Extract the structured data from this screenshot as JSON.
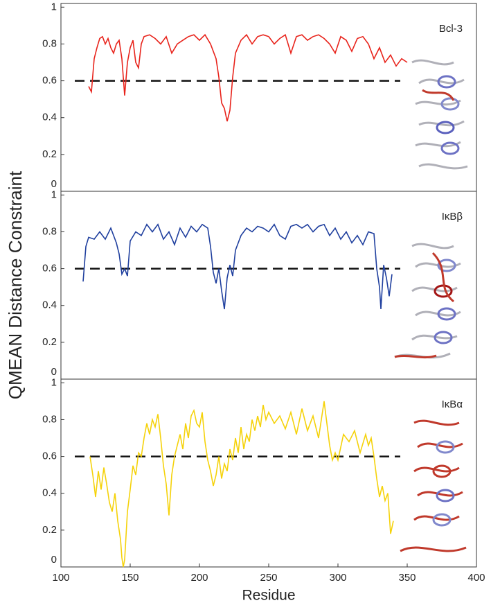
{
  "chart_data": [
    {
      "type": "line",
      "xlim": [
        100,
        400
      ],
      "ylim": [
        0,
        1.02
      ],
      "yticks": [
        0,
        0.2,
        0.4,
        0.6,
        0.8,
        1
      ],
      "threshold": 0.6,
      "series": [
        {
          "name": "Bcl-3",
          "color": "#e8231b",
          "x": [
            120,
            122,
            124,
            126,
            128,
            130,
            132,
            134,
            136,
            138,
            140,
            142,
            144,
            146,
            148,
            150,
            152,
            154,
            156,
            158,
            160,
            164,
            168,
            172,
            176,
            180,
            184,
            188,
            192,
            196,
            200,
            204,
            208,
            212,
            214,
            216,
            218,
            220,
            222,
            224,
            226,
            230,
            234,
            238,
            242,
            246,
            250,
            254,
            258,
            262,
            266,
            270,
            274,
            278,
            282,
            286,
            290,
            294,
            298,
            302,
            306,
            310,
            314,
            318,
            322,
            326,
            330,
            334,
            338,
            342,
            346,
            350
          ],
          "values": [
            0.57,
            0.54,
            0.72,
            0.78,
            0.83,
            0.84,
            0.8,
            0.83,
            0.78,
            0.75,
            0.8,
            0.82,
            0.72,
            0.52,
            0.7,
            0.78,
            0.82,
            0.7,
            0.67,
            0.8,
            0.84,
            0.85,
            0.83,
            0.8,
            0.84,
            0.75,
            0.8,
            0.82,
            0.84,
            0.85,
            0.82,
            0.85,
            0.8,
            0.72,
            0.62,
            0.48,
            0.45,
            0.38,
            0.44,
            0.62,
            0.75,
            0.82,
            0.85,
            0.8,
            0.84,
            0.85,
            0.84,
            0.8,
            0.83,
            0.85,
            0.75,
            0.84,
            0.85,
            0.82,
            0.84,
            0.85,
            0.83,
            0.8,
            0.75,
            0.84,
            0.82,
            0.76,
            0.83,
            0.84,
            0.8,
            0.72,
            0.78,
            0.7,
            0.74,
            0.68,
            0.72,
            0.7
          ]
        }
      ]
    },
    {
      "type": "line",
      "xlim": [
        100,
        400
      ],
      "ylim": [
        0,
        1.02
      ],
      "yticks": [
        0,
        0.2,
        0.4,
        0.6,
        0.8,
        1
      ],
      "threshold": 0.6,
      "ylabel": "QMEAN Distance Constraint",
      "series": [
        {
          "name": "IκBβ",
          "color": "#1f3f9e",
          "x": [
            116,
            118,
            120,
            124,
            128,
            132,
            136,
            140,
            142,
            144,
            146,
            148,
            150,
            154,
            158,
            162,
            166,
            170,
            174,
            178,
            182,
            186,
            190,
            194,
            198,
            202,
            206,
            208,
            210,
            212,
            214,
            216,
            218,
            220,
            222,
            224,
            226,
            230,
            234,
            238,
            242,
            246,
            250,
            254,
            258,
            262,
            266,
            270,
            274,
            278,
            282,
            286,
            290,
            294,
            298,
            302,
            306,
            310,
            314,
            318,
            322,
            326,
            328,
            330,
            331,
            333,
            335,
            337,
            339
          ],
          "values": [
            0.53,
            0.72,
            0.77,
            0.76,
            0.8,
            0.76,
            0.82,
            0.74,
            0.68,
            0.57,
            0.6,
            0.56,
            0.75,
            0.8,
            0.78,
            0.84,
            0.8,
            0.84,
            0.76,
            0.8,
            0.73,
            0.82,
            0.77,
            0.83,
            0.8,
            0.84,
            0.82,
            0.72,
            0.58,
            0.52,
            0.6,
            0.48,
            0.38,
            0.55,
            0.62,
            0.56,
            0.7,
            0.78,
            0.82,
            0.8,
            0.83,
            0.82,
            0.8,
            0.84,
            0.78,
            0.76,
            0.83,
            0.84,
            0.82,
            0.84,
            0.8,
            0.83,
            0.84,
            0.78,
            0.82,
            0.76,
            0.8,
            0.74,
            0.78,
            0.73,
            0.8,
            0.79,
            0.6,
            0.5,
            0.38,
            0.62,
            0.55,
            0.45,
            0.57
          ]
        }
      ]
    },
    {
      "type": "line",
      "xlim": [
        100,
        400
      ],
      "ylim": [
        0,
        1.02
      ],
      "yticks": [
        0,
        0.2,
        0.4,
        0.6,
        0.8,
        1
      ],
      "threshold": 0.6,
      "xticks": [
        100,
        150,
        200,
        250,
        300,
        350,
        400
      ],
      "xlabel": "Residue",
      "series": [
        {
          "name": "IκBα",
          "color": "#f5d20a",
          "x": [
            121,
            123,
            125,
            127,
            129,
            131,
            133,
            135,
            137,
            139,
            141,
            143,
            144,
            145,
            146,
            148,
            150,
            152,
            154,
            156,
            158,
            160,
            162,
            164,
            166,
            168,
            170,
            172,
            174,
            176,
            178,
            180,
            182,
            184,
            186,
            188,
            190,
            192,
            194,
            196,
            198,
            200,
            202,
            204,
            206,
            208,
            210,
            212,
            214,
            216,
            218,
            220,
            222,
            224,
            226,
            228,
            230,
            232,
            234,
            236,
            238,
            240,
            242,
            244,
            246,
            248,
            250,
            254,
            258,
            262,
            266,
            270,
            274,
            278,
            282,
            286,
            290,
            294,
            296,
            298,
            300,
            304,
            308,
            312,
            316,
            320,
            322,
            324,
            326,
            328,
            330,
            332,
            334,
            336,
            338,
            340
          ],
          "values": [
            0.6,
            0.5,
            0.38,
            0.52,
            0.42,
            0.54,
            0.45,
            0.35,
            0.3,
            0.4,
            0.25,
            0.15,
            0.05,
            0.0,
            0.04,
            0.3,
            0.42,
            0.55,
            0.5,
            0.62,
            0.6,
            0.7,
            0.78,
            0.72,
            0.8,
            0.76,
            0.83,
            0.7,
            0.55,
            0.45,
            0.28,
            0.5,
            0.6,
            0.66,
            0.72,
            0.64,
            0.78,
            0.7,
            0.82,
            0.85,
            0.78,
            0.76,
            0.84,
            0.68,
            0.58,
            0.52,
            0.44,
            0.5,
            0.6,
            0.48,
            0.56,
            0.52,
            0.64,
            0.58,
            0.7,
            0.62,
            0.76,
            0.64,
            0.72,
            0.68,
            0.8,
            0.74,
            0.82,
            0.76,
            0.88,
            0.8,
            0.84,
            0.78,
            0.82,
            0.75,
            0.84,
            0.72,
            0.86,
            0.74,
            0.82,
            0.7,
            0.9,
            0.66,
            0.58,
            0.62,
            0.58,
            0.72,
            0.68,
            0.74,
            0.62,
            0.72,
            0.66,
            0.7,
            0.6,
            0.48,
            0.38,
            0.44,
            0.36,
            0.4,
            0.18,
            0.25
          ]
        }
      ]
    }
  ]
}
